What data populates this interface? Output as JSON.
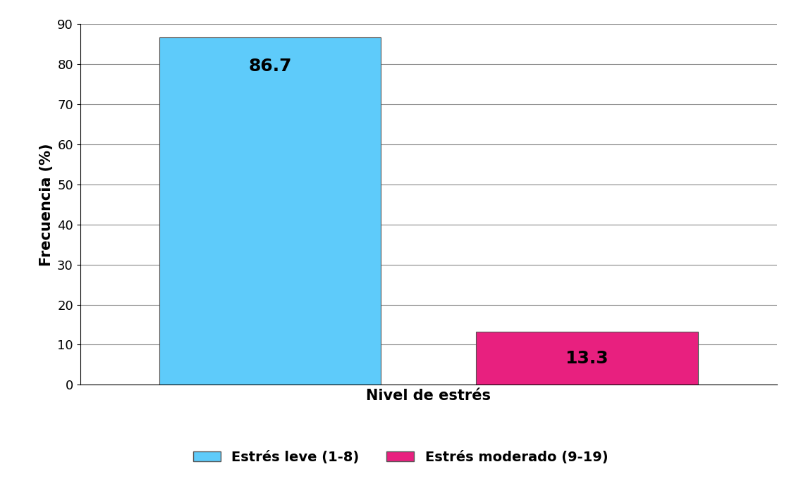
{
  "chart_data": {
    "type": "bar",
    "categories": [
      "Estrés leve (1-8)",
      "Estrés moderado (9-19)"
    ],
    "values": [
      86.7,
      13.3
    ],
    "colors": [
      "#5ecbfa",
      "#e8207f"
    ],
    "x_label": "Nivel de estrés",
    "y_label": "Frecuencia (%)",
    "ylim": [
      0,
      90
    ],
    "yticks": [
      0,
      10,
      20,
      30,
      40,
      50,
      60,
      70,
      80,
      90
    ],
    "grid": true,
    "legend": "lower center",
    "data_labels": true,
    "tick_labels": "y"
  }
}
